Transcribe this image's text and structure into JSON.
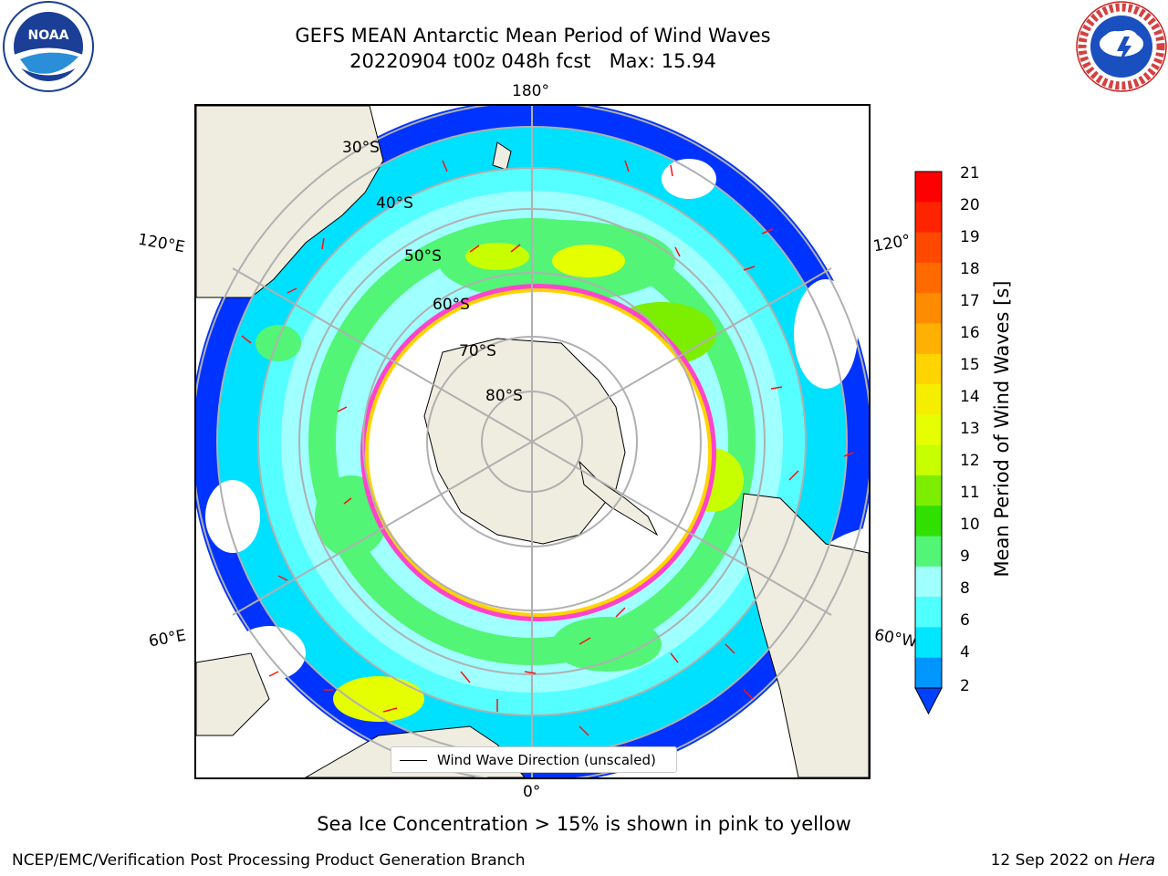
{
  "title": {
    "line1": "GEFS MEAN Antarctic Mean Period of Wind Waves",
    "line2": "20220904 t00z 048h fcst   Max: 15.94"
  },
  "map": {
    "lon_labels": {
      "top": "180°",
      "bottom": "0°",
      "left_upper": "120°E",
      "left_lower": "60°E",
      "right_upper": "120°",
      "right_lower": "60°W"
    },
    "lat_labels": [
      "30°S",
      "40°S",
      "50°S",
      "60°S",
      "70°S",
      "80°S"
    ],
    "legend": "Wind Wave Direction (unscaled)"
  },
  "colorbar": {
    "label": "Mean Period of Wind Waves [s]",
    "ticks": [
      "21",
      "20",
      "19",
      "18",
      "17",
      "16",
      "15",
      "14",
      "13",
      "12",
      "11",
      "10",
      "9",
      "8",
      "6",
      "4",
      "2"
    ],
    "colors": [
      "#ff0000",
      "#ff2400",
      "#ff4800",
      "#ff6a00",
      "#ff8c00",
      "#ffb000",
      "#ffd400",
      "#f5ee00",
      "#e6ff00",
      "#c8ff00",
      "#7cee00",
      "#32e000",
      "#52f575",
      "#a0ffff",
      "#50ffff",
      "#00e6ff",
      "#0096ff",
      "#0040ff"
    ]
  },
  "note": "Sea Ice Concentration > 15% is shown in pink to yellow",
  "footer": {
    "left": "NCEP/EMC/Verification Post Processing Product Generation Branch",
    "right_date": "12 Sep 2022 on ",
    "right_host": "Hera"
  },
  "logos": {
    "left": "noaa-logo",
    "right": "nws-logo"
  },
  "logo_text": {
    "noaa": "NOAA",
    "nws": "NATIONAL WEATHER SERVICE"
  }
}
